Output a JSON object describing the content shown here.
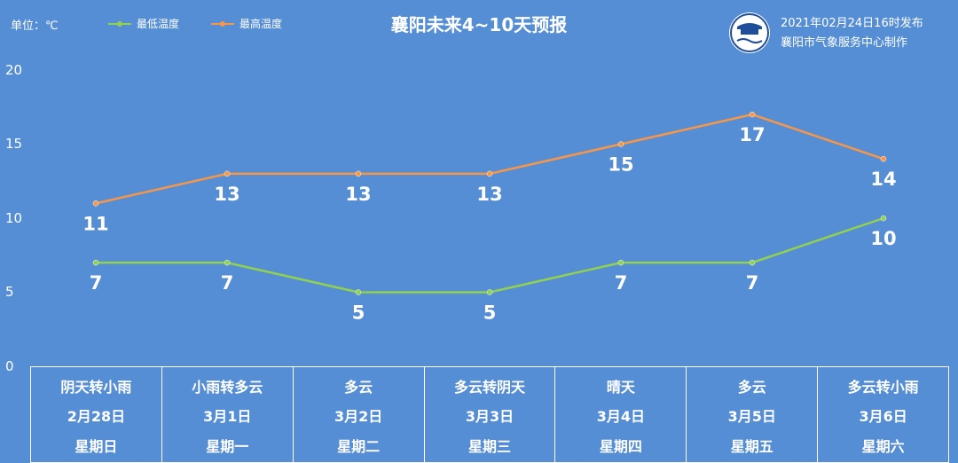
{
  "header": {
    "unit": "单位：℃",
    "title": "襄阳未来4~10天预报",
    "publish_time": "2021年02月24日16时发布",
    "publisher": "襄阳市气象服务中心制作",
    "logo_icon": "xiangyang-weather-logo-icon"
  },
  "colors": {
    "background": "#558ed5",
    "low_series": "#92d050",
    "high_series": "#f79646",
    "text": "#ffffff"
  },
  "chart_data": {
    "type": "line",
    "categories": [
      "2月28日",
      "3月1日",
      "3月2日",
      "3月3日",
      "3月4日",
      "3月5日",
      "3月6日"
    ],
    "series": [
      {
        "name": "最低温度",
        "values": [
          7,
          7,
          5,
          5,
          7,
          7,
          10
        ],
        "color": "#92d050"
      },
      {
        "name": "最高温度",
        "values": [
          11,
          13,
          13,
          13,
          15,
          17,
          14
        ],
        "color": "#f79646"
      }
    ],
    "ylim": [
      0,
      20
    ],
    "yticks": [
      "0",
      "5",
      "10",
      "15",
      "20"
    ],
    "legend_position": "top-left",
    "grid": false
  },
  "days": [
    {
      "weather": "阴天转小雨",
      "date": "2月28日",
      "weekday": "星期日"
    },
    {
      "weather": "小雨转多云",
      "date": "3月1日",
      "weekday": "星期一"
    },
    {
      "weather": "多云",
      "date": "3月2日",
      "weekday": "星期二"
    },
    {
      "weather": "多云转阴天",
      "date": "3月3日",
      "weekday": "星期三"
    },
    {
      "weather": "晴天",
      "date": "3月4日",
      "weekday": "星期四"
    },
    {
      "weather": "多云",
      "date": "3月5日",
      "weekday": "星期五"
    },
    {
      "weather": "多云转小雨",
      "date": "3月6日",
      "weekday": "星期六"
    }
  ]
}
